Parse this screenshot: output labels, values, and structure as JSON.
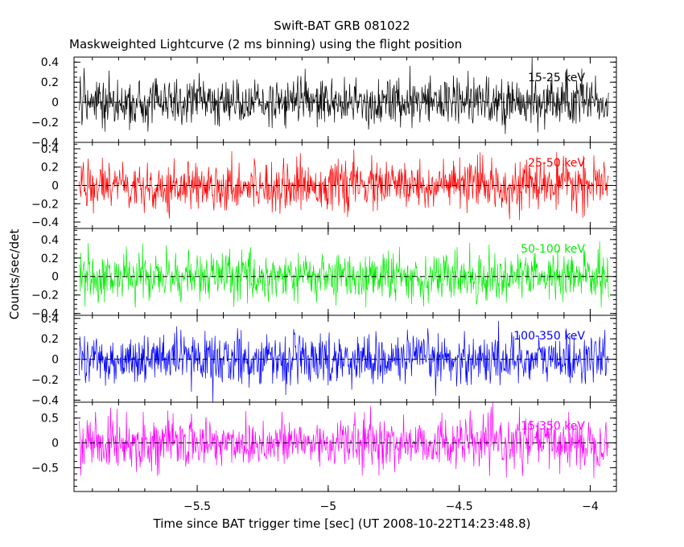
{
  "chart_data": {
    "type": "line",
    "title": "Swift-BAT GRB 081022",
    "subtitle": "Maskweighted Lightcurve (2 ms binning) using the flight position",
    "xlabel": "Time since BAT trigger time [sec] (UT 2008-10-22T14:23:48.8)",
    "ylabel": "Counts/sec/det",
    "xlim": [
      -5.97,
      -3.9
    ],
    "x_ticks": [
      {
        "value": -5.5,
        "label": "−5.5"
      },
      {
        "value": -5.0,
        "label": "−5"
      },
      {
        "value": -4.5,
        "label": "−4.5"
      },
      {
        "value": -4.0,
        "label": "−4"
      }
    ],
    "x_range_of_data": [
      -5.95,
      -3.93
    ],
    "bin_width": 0.002,
    "panels": [
      {
        "name": "15-25 keV",
        "color": "#000000",
        "ylim": [
          -0.4,
          0.45
        ],
        "y_ticks": [
          {
            "value": 0.4,
            "label": "0.4"
          },
          {
            "value": 0.2,
            "label": "0.2"
          },
          {
            "value": 0,
            "label": "0"
          },
          {
            "value": -0.2,
            "label": "−0.2"
          },
          {
            "value": -0.4,
            "label": "−0.4"
          }
        ],
        "noise_sigma": 0.12,
        "data_range": [
          -0.4,
          0.45
        ]
      },
      {
        "name": "25-50 keV",
        "color": "#ff0000",
        "ylim": [
          -0.47,
          0.47
        ],
        "y_ticks": [
          {
            "value": 0.4,
            "label": "0.4"
          },
          {
            "value": 0.2,
            "label": "0.2"
          },
          {
            "value": 0,
            "label": "0"
          },
          {
            "value": -0.2,
            "label": "−0.2"
          },
          {
            "value": -0.4,
            "label": "−0.4"
          }
        ],
        "noise_sigma": 0.13,
        "data_range": [
          -0.47,
          0.47
        ]
      },
      {
        "name": "50-100 keV",
        "color": "#00ee00",
        "ylim": [
          -0.42,
          0.52
        ],
        "y_ticks": [
          {
            "value": 0.4,
            "label": "0.4"
          },
          {
            "value": 0.2,
            "label": "0.2"
          },
          {
            "value": 0,
            "label": "0"
          },
          {
            "value": -0.2,
            "label": "−0.2"
          },
          {
            "value": -0.4,
            "label": "−0.4"
          }
        ],
        "noise_sigma": 0.13,
        "data_range": [
          -0.42,
          0.52
        ]
      },
      {
        "name": "100-350 keV",
        "color": "#0000ff",
        "ylim": [
          -0.42,
          0.43
        ],
        "y_ticks": [
          {
            "value": 0.4,
            "label": "0.4"
          },
          {
            "value": 0.2,
            "label": "0.2"
          },
          {
            "value": 0,
            "label": "0"
          },
          {
            "value": -0.2,
            "label": "−0.2"
          },
          {
            "value": -0.4,
            "label": "−0.4"
          }
        ],
        "noise_sigma": 0.12,
        "data_range": [
          -0.42,
          0.43
        ]
      },
      {
        "name": "15-350 keV",
        "color": "#ff00ff",
        "ylim": [
          -0.98,
          0.82
        ],
        "y_ticks": [
          {
            "value": 0.5,
            "label": "0.5"
          },
          {
            "value": 0,
            "label": "0"
          },
          {
            "value": -0.5,
            "label": "−0.5"
          }
        ],
        "noise_sigma": 0.25,
        "data_range": [
          -0.98,
          0.82
        ]
      }
    ],
    "zero_line": {
      "y": 0,
      "style": "dashed"
    }
  }
}
